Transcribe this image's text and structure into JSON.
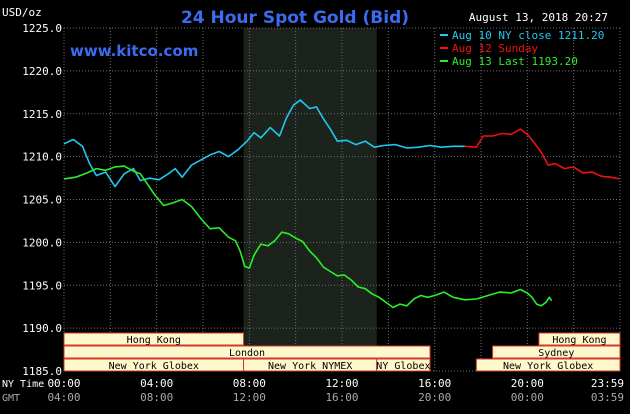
{
  "header": {
    "units": "USD/oz",
    "title": "24 Hour Spot Gold (Bid)",
    "timestamp": "August 13, 2018 20:27",
    "website": "www.kitco.com"
  },
  "colors": {
    "background": "#000000",
    "title": "#3b6cf0",
    "website": "#3b6cf0",
    "text": "#ffffff",
    "grid": "#6e6e6e",
    "highlight_band": "#1c221c",
    "session_fill": "#fff8cc",
    "session_stroke": "#d23a2a",
    "session_text": "#000000",
    "aug10": "#1ec8f0",
    "aug12": "#ee1111",
    "aug13": "#2aee2a"
  },
  "legend": [
    {
      "label": "Aug 10 NY close 1211.20",
      "color_key": "aug10"
    },
    {
      "label": "Aug 12 Sunday",
      "color_key": "aug12"
    },
    {
      "label": "Aug 13 Last 1193.20",
      "color_key": "aug13"
    }
  ],
  "sessions": [
    {
      "label": "Hong Kong",
      "row": 0,
      "start": 0,
      "end": 7.75
    },
    {
      "label": "Hong Kong",
      "row": 0,
      "start": 20.5,
      "end": 24
    },
    {
      "label": "London",
      "row": 1,
      "start": 0,
      "end": 15.8
    },
    {
      "label": "Sydney",
      "row": 1,
      "start": 18.5,
      "end": 24
    },
    {
      "label": "New York Globex",
      "row": 2,
      "start": 0,
      "end": 7.75
    },
    {
      "label": "New York NYMEX",
      "row": 2,
      "start": 7.75,
      "end": 13.5
    },
    {
      "label": "NY Globex",
      "row": 2,
      "start": 13.5,
      "end": 15.8
    },
    {
      "label": "New York Globex",
      "row": 2,
      "start": 17.8,
      "end": 24
    }
  ],
  "chart_data": {
    "type": "line",
    "ylim": [
      1185,
      1225
    ],
    "xlim": [
      0,
      24
    ],
    "yticks": [
      "1225.0",
      "1220.0",
      "1215.0",
      "1210.0",
      "1205.0",
      "1200.0",
      "1195.0",
      "1190.0",
      "1185.0"
    ],
    "ytick_values": [
      1225,
      1220,
      1215,
      1210,
      1205,
      1200,
      1195,
      1190,
      1185
    ],
    "grid": true,
    "highlight_band_hours": [
      7.75,
      13.5
    ],
    "x_axis_rows": [
      {
        "caption": "NY Time",
        "ticks": [
          "00:00",
          "04:00",
          "08:00",
          "12:00",
          "16:00",
          "20:00",
          "23:59"
        ],
        "color": "#ffffff"
      },
      {
        "caption": "GMT",
        "ticks": [
          "04:00",
          "08:00",
          "12:00",
          "16:00",
          "20:00",
          "00:00",
          "03:59"
        ],
        "color": "#aaaaaa"
      }
    ],
    "xtick_hours": [
      0,
      4,
      8,
      12,
      16,
      20,
      23.98
    ],
    "series": [
      {
        "name": "Aug 10 NY close 1211.20",
        "color_key": "aug10",
        "points": [
          [
            0,
            1211.5
          ],
          [
            0.4,
            1212
          ],
          [
            0.8,
            1211.2
          ],
          [
            1.1,
            1209.2
          ],
          [
            1.4,
            1207.8
          ],
          [
            1.8,
            1208.2
          ],
          [
            2.2,
            1206.5
          ],
          [
            2.6,
            1208
          ],
          [
            3,
            1208.6
          ],
          [
            3.3,
            1207.2
          ],
          [
            3.7,
            1207.5
          ],
          [
            4.1,
            1207.3
          ],
          [
            4.5,
            1208
          ],
          [
            4.8,
            1208.6
          ],
          [
            5.1,
            1207.6
          ],
          [
            5.5,
            1209
          ],
          [
            5.9,
            1209.6
          ],
          [
            6.3,
            1210.2
          ],
          [
            6.7,
            1210.6
          ],
          [
            7.1,
            1210
          ],
          [
            7.5,
            1210.8
          ],
          [
            7.9,
            1211.8
          ],
          [
            8.2,
            1212.8
          ],
          [
            8.5,
            1212.2
          ],
          [
            8.9,
            1213.4
          ],
          [
            9.3,
            1212.4
          ],
          [
            9.6,
            1214.5
          ],
          [
            9.9,
            1216
          ],
          [
            10.2,
            1216.6
          ],
          [
            10.6,
            1215.6
          ],
          [
            10.9,
            1215.8
          ],
          [
            11.2,
            1214.4
          ],
          [
            11.5,
            1213.2
          ],
          [
            11.8,
            1211.8
          ],
          [
            12.2,
            1211.9
          ],
          [
            12.6,
            1211.4
          ],
          [
            13,
            1211.8
          ],
          [
            13.4,
            1211.1
          ],
          [
            13.8,
            1211.3
          ],
          [
            14.3,
            1211.4
          ],
          [
            14.8,
            1211
          ],
          [
            15.3,
            1211.1
          ],
          [
            15.8,
            1211.3
          ],
          [
            16.3,
            1211.1
          ],
          [
            16.8,
            1211.2
          ],
          [
            17.3,
            1211.2
          ]
        ]
      },
      {
        "name": "Aug 12 Sunday",
        "color_key": "aug12",
        "points": [
          [
            17.3,
            1211.2
          ],
          [
            17.8,
            1211.1
          ],
          [
            18.1,
            1212.4
          ],
          [
            18.5,
            1212.4
          ],
          [
            18.9,
            1212.7
          ],
          [
            19.3,
            1212.6
          ],
          [
            19.7,
            1213.2
          ],
          [
            20,
            1212.6
          ],
          [
            20.3,
            1211.6
          ],
          [
            20.6,
            1210.5
          ],
          [
            20.9,
            1209
          ],
          [
            21.2,
            1209.2
          ],
          [
            21.6,
            1208.6
          ],
          [
            22,
            1208.8
          ],
          [
            22.4,
            1208.1
          ],
          [
            22.8,
            1208.2
          ],
          [
            23.2,
            1207.7
          ],
          [
            23.6,
            1207.6
          ],
          [
            23.98,
            1207.4
          ]
        ]
      },
      {
        "name": "Aug 13 Last 1193.20",
        "color_key": "aug13",
        "points": [
          [
            0,
            1207.4
          ],
          [
            0.5,
            1207.6
          ],
          [
            1,
            1208.1
          ],
          [
            1.4,
            1208.6
          ],
          [
            1.8,
            1208.4
          ],
          [
            2.2,
            1208.8
          ],
          [
            2.6,
            1208.9
          ],
          [
            3,
            1208.3
          ],
          [
            3.3,
            1208
          ],
          [
            3.6,
            1206.8
          ],
          [
            3.9,
            1205.6
          ],
          [
            4.3,
            1204.3
          ],
          [
            4.7,
            1204.6
          ],
          [
            5.1,
            1205
          ],
          [
            5.5,
            1204.2
          ],
          [
            5.9,
            1202.8
          ],
          [
            6.3,
            1201.6
          ],
          [
            6.7,
            1201.7
          ],
          [
            7.1,
            1200.6
          ],
          [
            7.4,
            1200.2
          ],
          [
            7.6,
            1199
          ],
          [
            7.8,
            1197.2
          ],
          [
            8,
            1197
          ],
          [
            8.2,
            1198.5
          ],
          [
            8.5,
            1199.8
          ],
          [
            8.8,
            1199.6
          ],
          [
            9.1,
            1200.2
          ],
          [
            9.4,
            1201.2
          ],
          [
            9.7,
            1201
          ],
          [
            10,
            1200.5
          ],
          [
            10.3,
            1200.1
          ],
          [
            10.6,
            1199
          ],
          [
            10.9,
            1198.2
          ],
          [
            11.2,
            1197.1
          ],
          [
            11.5,
            1196.6
          ],
          [
            11.8,
            1196.1
          ],
          [
            12.1,
            1196.2
          ],
          [
            12.4,
            1195.6
          ],
          [
            12.7,
            1194.8
          ],
          [
            13,
            1194.6
          ],
          [
            13.3,
            1194
          ],
          [
            13.6,
            1193.6
          ],
          [
            13.9,
            1193
          ],
          [
            14.2,
            1192.4
          ],
          [
            14.5,
            1192.8
          ],
          [
            14.8,
            1192.6
          ],
          [
            15.1,
            1193.4
          ],
          [
            15.4,
            1193.8
          ],
          [
            15.7,
            1193.6
          ],
          [
            16,
            1193.8
          ],
          [
            16.4,
            1194.2
          ],
          [
            16.8,
            1193.6
          ],
          [
            17.3,
            1193.3
          ],
          [
            17.8,
            1193.4
          ],
          [
            18.3,
            1193.8
          ],
          [
            18.8,
            1194.2
          ],
          [
            19.3,
            1194.1
          ],
          [
            19.7,
            1194.5
          ],
          [
            20,
            1194.1
          ],
          [
            20.2,
            1193.6
          ],
          [
            20.4,
            1192.8
          ],
          [
            20.6,
            1192.6
          ],
          [
            20.8,
            1193
          ],
          [
            20.95,
            1193.6
          ],
          [
            21.05,
            1193.2
          ]
        ]
      }
    ]
  }
}
